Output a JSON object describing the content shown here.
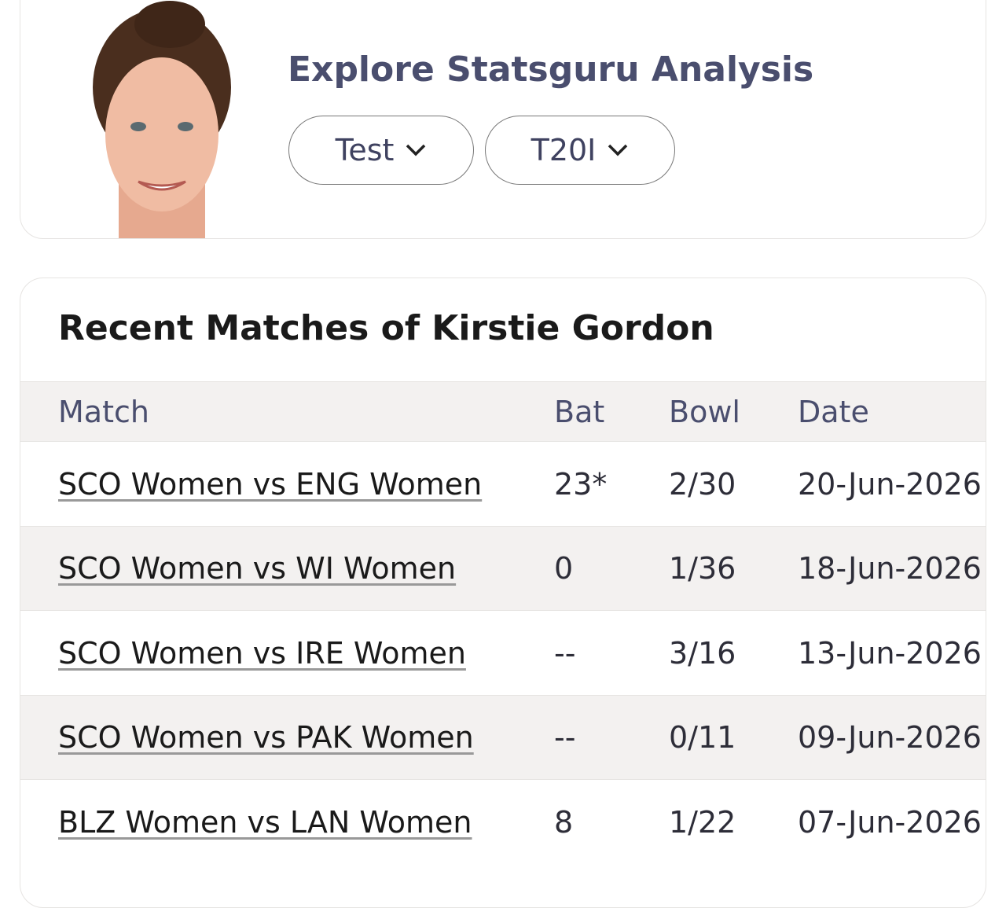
{
  "header": {
    "title": "Explore Statsguru Analysis",
    "buttons": [
      "Test",
      "T20I"
    ]
  },
  "recent": {
    "title": "Recent Matches of Kirstie Gordon",
    "table": {
      "columns": [
        "Match",
        "Bat",
        "Bowl",
        "Date"
      ],
      "rows": [
        [
          "SCO Women vs ENG Women",
          "23*",
          "2/30",
          "20-Jun-2026"
        ],
        [
          "SCO Women vs WI Women",
          "0",
          "1/36",
          "18-Jun-2026"
        ],
        [
          "SCO Women vs IRE Women",
          "--",
          "3/16",
          "13-Jun-2026"
        ],
        [
          "SCO Women vs PAK Women",
          "--",
          "0/11",
          "09-Jun-2026"
        ],
        [
          "BLZ Women vs LAN Women",
          "8",
          "1/22",
          "07-Jun-2026"
        ]
      ]
    }
  }
}
